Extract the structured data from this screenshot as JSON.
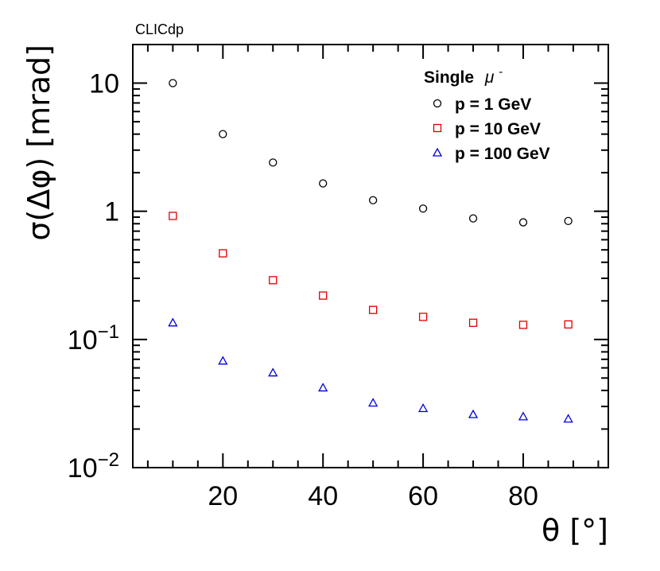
{
  "chart_data": {
    "type": "scatter",
    "corner_label": "CLICdp",
    "xlabel": "θ [°]",
    "ylabel": "σ(Δφ) [mrad]",
    "xlim": [
      2,
      97
    ],
    "ylim": [
      0.01,
      20
    ],
    "y_scale": "log",
    "grid": false,
    "legend_position": "top-right",
    "legend_title_main": "Single",
    "legend_title_symbol": "μ",
    "legend_title_sup": "-",
    "x_ticks": [
      20,
      40,
      60,
      80
    ],
    "x_tick_labels": [
      "20",
      "40",
      "60",
      "80"
    ],
    "y_ticks": [
      {
        "value": 10,
        "base": "10",
        "exp": ""
      },
      {
        "value": 1,
        "base": "1",
        "exp": ""
      },
      {
        "value": 0.1,
        "base": "10",
        "exp": "−1"
      },
      {
        "value": 0.01,
        "base": "10",
        "exp": "−2"
      }
    ],
    "x": [
      10,
      20,
      30,
      40,
      50,
      60,
      70,
      80,
      89
    ],
    "series": [
      {
        "name": "p = 1 GeV",
        "marker": "circle",
        "color": "#000000",
        "values": [
          10.0,
          4.0,
          2.4,
          1.65,
          1.22,
          1.05,
          0.88,
          0.82,
          0.84
        ]
      },
      {
        "name": "p = 10 GeV",
        "marker": "square",
        "color": "#dd0000",
        "values": [
          0.92,
          0.47,
          0.29,
          0.22,
          0.17,
          0.15,
          0.135,
          0.13,
          0.131
        ]
      },
      {
        "name": "p = 100 GeV",
        "marker": "triangle",
        "color": "#0000dd",
        "values": [
          0.135,
          0.068,
          0.055,
          0.042,
          0.032,
          0.029,
          0.026,
          0.025,
          0.024
        ]
      }
    ]
  }
}
